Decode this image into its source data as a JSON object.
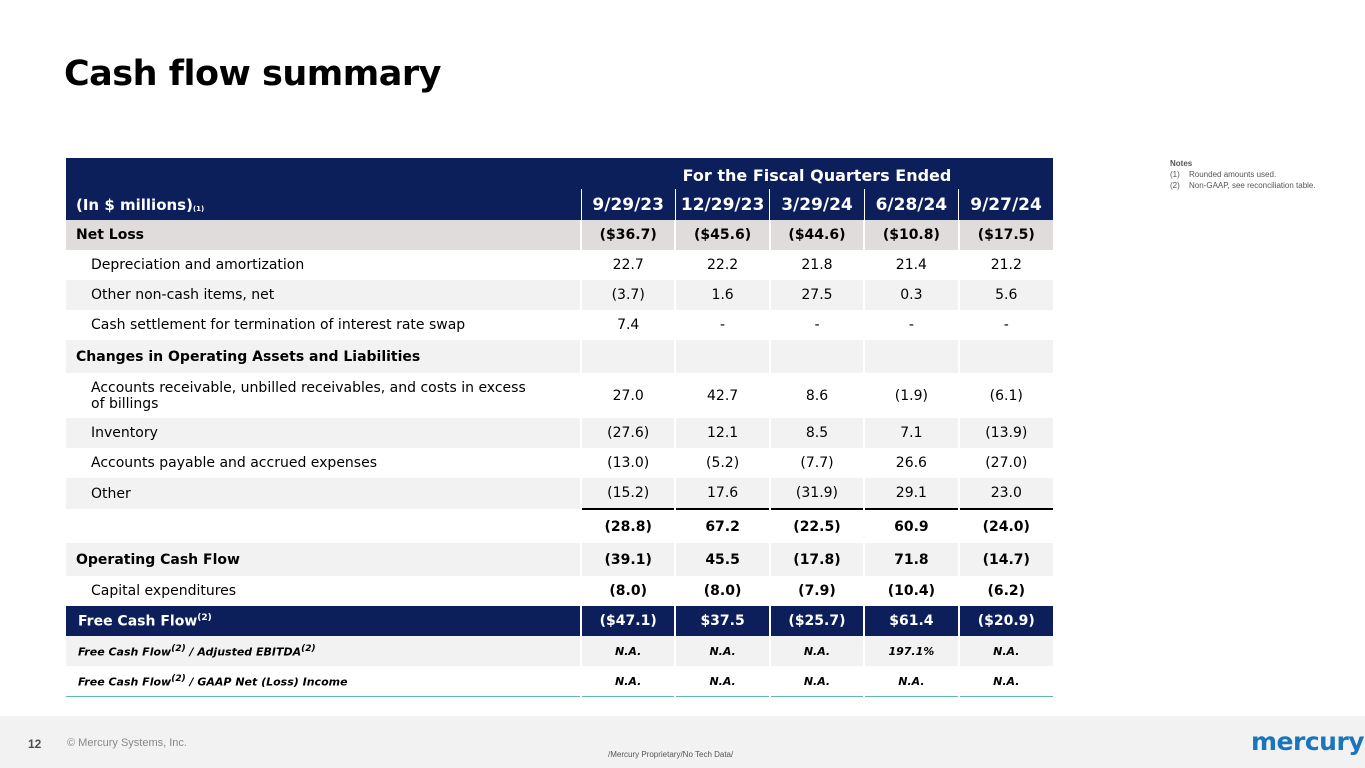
{
  "slide": {
    "title": "Cash flow summary"
  },
  "notes": {
    "heading": "Notes",
    "items": [
      {
        "num": "(1)",
        "text": "Rounded amounts used."
      },
      {
        "num": "(2)",
        "text": "Non-GAAP, see reconciliation table."
      }
    ]
  },
  "table": {
    "span_header": "For the Fiscal Quarters Ended",
    "label_header": "(In $ millions)",
    "label_header_note": "(1)",
    "quarters": [
      "9/29/23",
      "12/29/23",
      "3/29/24",
      "6/28/24",
      "9/27/24"
    ],
    "rows": [
      {
        "label": "Net Loss",
        "values": [
          "($36.7)",
          "($45.6)",
          "($44.6)",
          "($10.8)",
          "($17.5)"
        ]
      },
      {
        "label": "Depreciation and amortization",
        "values": [
          "22.7",
          "22.2",
          "21.8",
          "21.4",
          "21.2"
        ]
      },
      {
        "label": "Other non-cash items, net",
        "values": [
          "(3.7)",
          "1.6",
          "27.5",
          "0.3",
          "5.6"
        ]
      },
      {
        "label": "Cash settlement for termination of interest rate swap",
        "values": [
          "7.4",
          "-",
          "-",
          "-",
          "-"
        ]
      },
      {
        "label": "Changes in Operating Assets and Liabilities",
        "values": [
          "",
          "",
          "",
          "",
          ""
        ]
      },
      {
        "label": "Accounts receivable, unbilled receivables, and costs in excess of billings",
        "values": [
          "27.0",
          "42.7",
          "8.6",
          "(1.9)",
          "(6.1)"
        ]
      },
      {
        "label": "Inventory",
        "values": [
          "(27.6)",
          "12.1",
          "8.5",
          "7.1",
          "(13.9)"
        ]
      },
      {
        "label": "Accounts payable and accrued expenses",
        "values": [
          "(13.0)",
          "(5.2)",
          "(7.7)",
          "26.6",
          "(27.0)"
        ]
      },
      {
        "label": "Other",
        "values": [
          "(15.2)",
          "17.6",
          "(31.9)",
          "29.1",
          "23.0"
        ]
      },
      {
        "label": "",
        "values": [
          "(28.8)",
          "67.2",
          "(22.5)",
          "60.9",
          "(24.0)"
        ]
      },
      {
        "label": "Operating Cash Flow",
        "values": [
          "(39.1)",
          "45.5",
          "(17.8)",
          "71.8",
          "(14.7)"
        ]
      },
      {
        "label": "Capital expenditures",
        "values": [
          "(8.0)",
          "(8.0)",
          "(7.9)",
          "(10.4)",
          "(6.2)"
        ]
      },
      {
        "label": "Free Cash Flow",
        "note": "(2)",
        "values": [
          "($47.1)",
          "$37.5",
          "($25.7)",
          "$61.4",
          "($20.9)"
        ]
      },
      {
        "label_a": "Free Cash Flow",
        "note_a": "(2)",
        "label_b": " / Adjusted EBITDA",
        "note_b": "(2)",
        "values": [
          "N.A.",
          "N.A.",
          "N.A.",
          "197.1%",
          "N.A."
        ]
      },
      {
        "label_a": "Free Cash Flow",
        "note_a": "(2)",
        "label_b": " / GAAP Net (Loss) Income",
        "values": [
          "N.A.",
          "N.A.",
          "N.A.",
          "N.A.",
          "N.A."
        ]
      }
    ]
  },
  "footer": {
    "page_number": "12",
    "copyright": "© Mercury Systems, Inc.",
    "classification": "/Mercury Proprietary/No Tech Data/",
    "logo_text": "mercury",
    "logo_color": "#1b75bb"
  },
  "colors": {
    "navy": "#0c1f5a",
    "row_grey": "#f2f2f2",
    "row_dark": "#e0dcdc"
  }
}
